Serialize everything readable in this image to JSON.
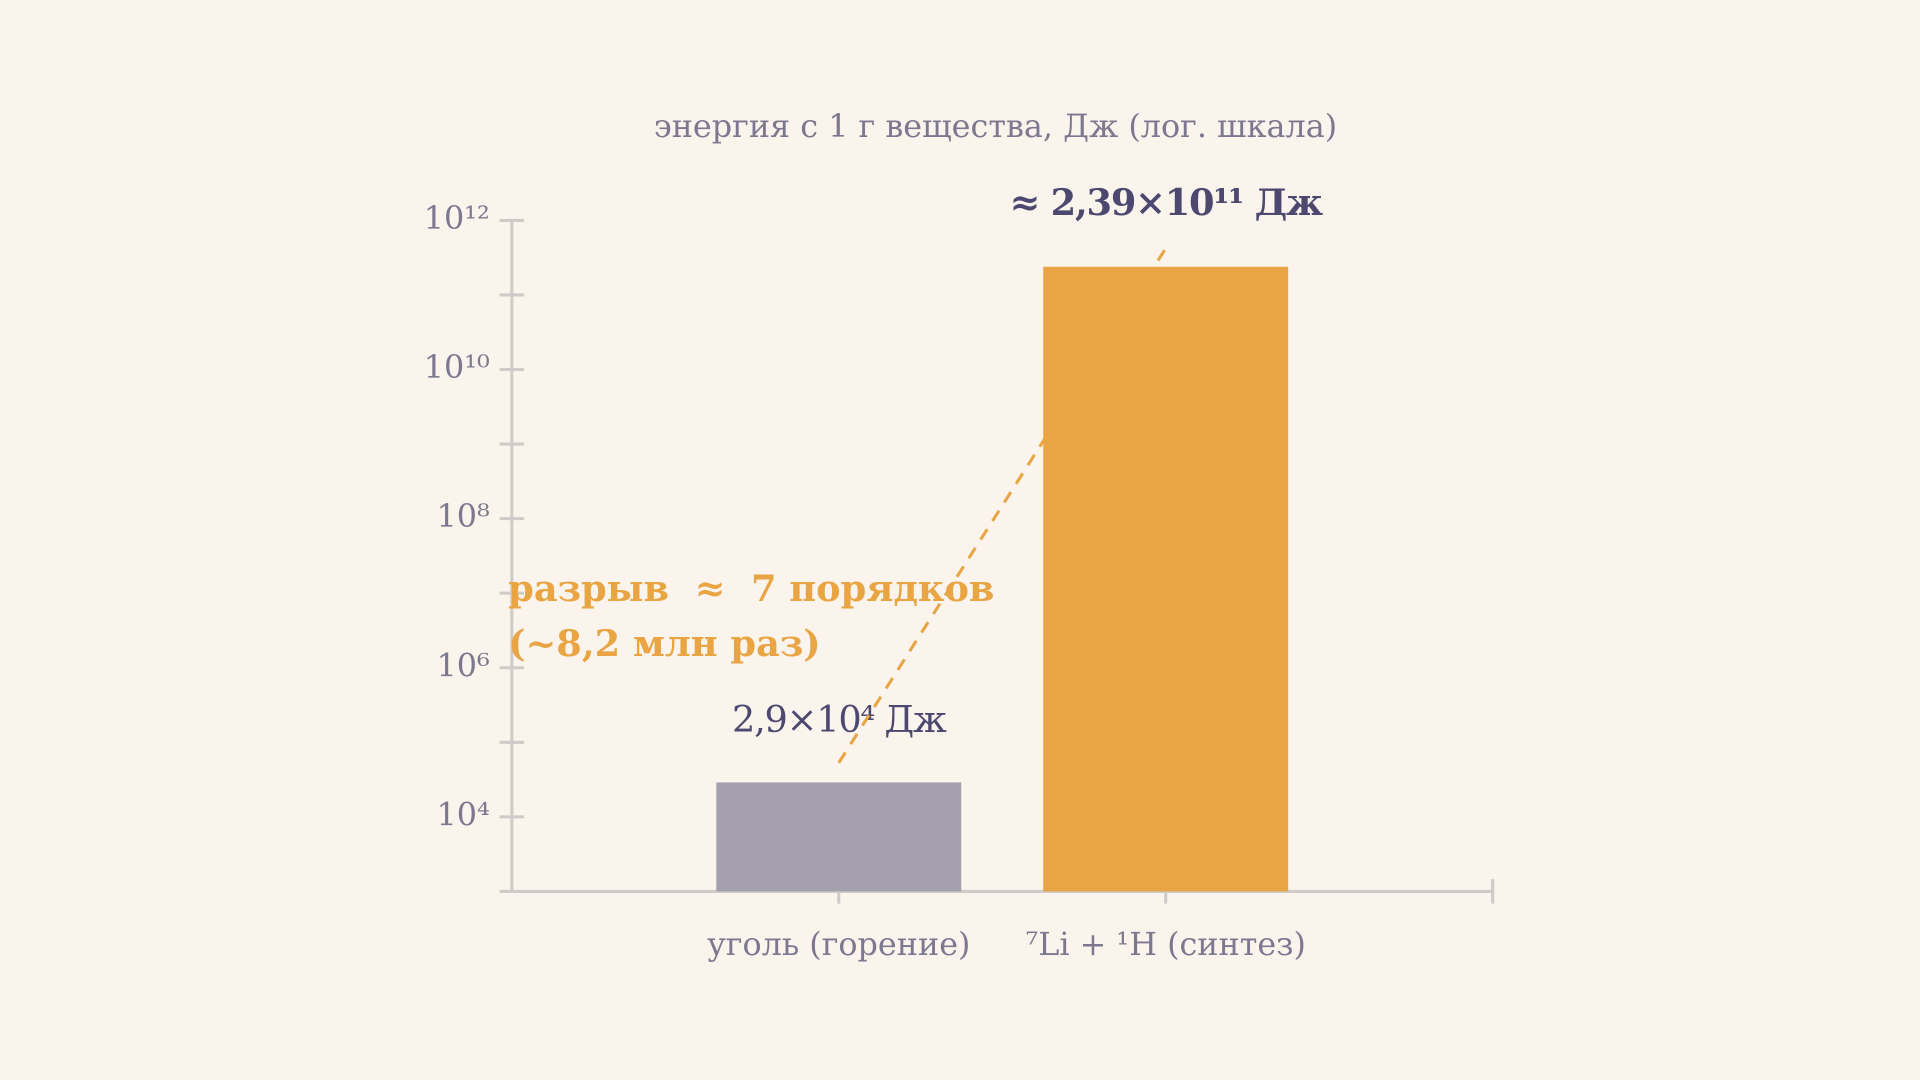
{
  "chart_data": {
    "type": "bar",
    "title": "энергия с 1 г вещества, Дж (лог. шкала)",
    "categories": [
      "уголь (горение)",
      "⁷Li + ¹H (синтез)"
    ],
    "values": [
      29000,
      239000000000
    ],
    "value_labels": [
      "2,9×10⁴ Дж",
      "≈ 2,39×10¹¹ Дж"
    ],
    "colors": [
      "#a5a0ad",
      "#e9a544"
    ],
    "log_scale": true,
    "ylim": [
      1000,
      1000000000000
    ],
    "yticks": [
      {
        "value": 10000,
        "label": "10⁴"
      },
      {
        "value": 1000000,
        "label": "10⁶"
      },
      {
        "value": 100000000,
        "label": "10⁸"
      },
      {
        "value": 10000000000,
        "label": "10¹⁰"
      },
      {
        "value": 1000000000000,
        "label": "10¹²"
      }
    ],
    "minor_yticks": [
      100000,
      10000000,
      1000000000,
      100000000000
    ],
    "annotations": [
      "разрыв  ≈  7 порядков",
      "(~8,2 млн раз)"
    ],
    "annotation_color": "#e9a544"
  }
}
